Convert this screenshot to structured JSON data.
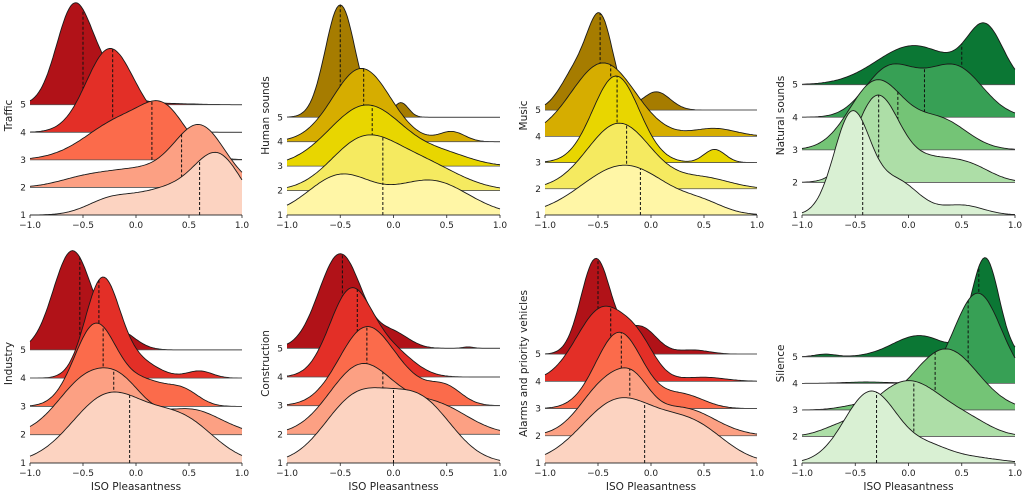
{
  "chart_data": [
    {
      "type": "ridgeline",
      "ylabel": "Traffic",
      "xlabel": "",
      "xlim": [
        -1,
        1
      ],
      "ylim": [
        1,
        8.8
      ],
      "xticks": [
        "−1.0",
        "−0.5",
        "0.0",
        "0.5",
        "1.0"
      ],
      "yticks": [
        "1",
        "2",
        "3",
        "4",
        "5"
      ],
      "palette": [
        "#fcd3c1",
        "#fca083",
        "#fb6b4b",
        "#e32f27",
        "#b11218"
      ],
      "ridges": [
        {
          "level": 1,
          "median": 0.6,
          "density": [
            [
              0.78,
              0.22,
              2.0
            ],
            [
              0.3,
              0.3,
              0.9
            ],
            [
              -0.25,
              0.22,
              0.5
            ]
          ]
        },
        {
          "level": 2,
          "median": 0.43,
          "density": [
            [
              0.6,
              0.24,
              2.2
            ],
            [
              0.0,
              0.3,
              0.6
            ],
            [
              -0.5,
              0.25,
              0.3
            ]
          ]
        },
        {
          "level": 3,
          "median": 0.15,
          "density": [
            [
              -0.1,
              0.35,
              1.5
            ],
            [
              0.28,
              0.2,
              1.2
            ]
          ]
        },
        {
          "level": 4,
          "median": -0.22,
          "density": [
            [
              -0.25,
              0.22,
              3.0
            ],
            [
              0.15,
              0.2,
              0.3
            ]
          ]
        },
        {
          "level": 5,
          "median": -0.5,
          "density": [
            [
              -0.6,
              0.16,
              3.1
            ],
            [
              -0.35,
              0.2,
              1.2
            ],
            [
              0.2,
              0.3,
              0.05
            ]
          ]
        }
      ]
    },
    {
      "type": "ridgeline",
      "ylabel": "Human sounds",
      "xlabel": "",
      "xlim": [
        -1,
        1
      ],
      "ylim": [
        1,
        9.8
      ],
      "xticks": [
        "−1.0",
        "−0.5",
        "0.0",
        "0.5",
        "1.0"
      ],
      "yticks": [
        "1",
        "2",
        "3",
        "4",
        "5"
      ],
      "palette": [
        "#fff6a6",
        "#f5ea60",
        "#e8d600",
        "#d6ad00",
        "#a67c00"
      ],
      "ridges": [
        {
          "level": 1,
          "median": -0.1,
          "density": [
            [
              -0.5,
              0.3,
              1.6
            ],
            [
              0.35,
              0.35,
              1.4
            ]
          ]
        },
        {
          "level": 2,
          "median": -0.1,
          "density": [
            [
              -0.3,
              0.3,
              1.9
            ],
            [
              0.25,
              0.35,
              1.1
            ]
          ]
        },
        {
          "level": 3,
          "median": -0.2,
          "density": [
            [
              -0.25,
              0.35,
              2.5
            ],
            [
              0.5,
              0.25,
              0.4
            ]
          ]
        },
        {
          "level": 4,
          "median": -0.28,
          "density": [
            [
              -0.3,
              0.27,
              3.0
            ],
            [
              0.55,
              0.12,
              0.4
            ]
          ]
        },
        {
          "level": 5,
          "median": -0.5,
          "density": [
            [
              -0.5,
              0.14,
              4.6
            ],
            [
              0.07,
              0.07,
              0.6
            ]
          ]
        }
      ]
    },
    {
      "type": "ridgeline",
      "ylabel": "Music",
      "xlabel": "",
      "xlim": [
        -1,
        1
      ],
      "ylim": [
        1,
        9.2
      ],
      "xticks": [
        "−1.0",
        "−0.5",
        "0.0",
        "0.5",
        "1.0"
      ],
      "yticks": [
        "1",
        "2",
        "3",
        "4",
        "5"
      ],
      "palette": [
        "#fff6a6",
        "#f5ea60",
        "#e8d600",
        "#d6ad00",
        "#a67c00"
      ],
      "ridges": [
        {
          "level": 1,
          "median": -0.1,
          "density": [
            [
              -0.25,
              0.4,
              1.9
            ],
            [
              0.5,
              0.2,
              0.3
            ]
          ]
        },
        {
          "level": 2,
          "median": -0.23,
          "density": [
            [
              -0.3,
              0.3,
              2.5
            ],
            [
              0.5,
              0.25,
              0.4
            ]
          ]
        },
        {
          "level": 3,
          "median": -0.32,
          "density": [
            [
              -0.33,
              0.22,
              3.3
            ],
            [
              0.6,
              0.1,
              0.5
            ]
          ]
        },
        {
          "level": 4,
          "median": -0.38,
          "density": [
            [
              -0.45,
              0.3,
              2.8
            ],
            [
              0.6,
              0.2,
              0.3
            ]
          ]
        },
        {
          "level": 5,
          "median": -0.48,
          "density": [
            [
              -0.47,
              0.12,
              3.2
            ],
            [
              -0.7,
              0.15,
              1.5
            ],
            [
              0.05,
              0.13,
              0.7
            ]
          ]
        }
      ]
    },
    {
      "type": "ridgeline",
      "ylabel": "Natural sounds",
      "xlabel": "",
      "xlim": [
        -1,
        1
      ],
      "ylim": [
        1,
        7.6
      ],
      "xticks": [
        "−1.0",
        "−0.5",
        "0.0",
        "0.5",
        "1.0"
      ],
      "yticks": [
        "1",
        "2",
        "3",
        "4",
        "5"
      ],
      "palette": [
        "#d9f0d3",
        "#addea7",
        "#74c476",
        "#37a055",
        "#0b7734"
      ],
      "ridges": [
        {
          "level": 1,
          "median": -0.43,
          "density": [
            [
              -0.53,
              0.17,
              3.1
            ],
            [
              -0.1,
              0.2,
              1.0
            ],
            [
              0.5,
              0.2,
              0.3
            ]
          ]
        },
        {
          "level": 2,
          "median": -0.28,
          "density": [
            [
              -0.3,
              0.2,
              2.5
            ],
            [
              0.2,
              0.3,
              0.7
            ],
            [
              0.6,
              0.2,
              0.3
            ]
          ]
        },
        {
          "level": 3,
          "median": -0.1,
          "density": [
            [
              -0.3,
              0.25,
              2.1
            ],
            [
              0.3,
              0.25,
              0.9
            ]
          ]
        },
        {
          "level": 4,
          "median": 0.15,
          "density": [
            [
              -0.2,
              0.22,
              1.4
            ],
            [
              0.45,
              0.25,
              1.5
            ],
            [
              0.1,
              0.2,
              0.4
            ]
          ]
        },
        {
          "level": 5,
          "median": 0.5,
          "density": [
            [
              0.72,
              0.17,
              1.7
            ],
            [
              0.05,
              0.35,
              1.2
            ]
          ]
        }
      ]
    },
    {
      "type": "ridgeline",
      "ylabel": "Industry",
      "xlabel": "ISO Pleasantness",
      "xlim": [
        -1,
        1
      ],
      "ylim": [
        1,
        8.6
      ],
      "xticks": [
        "−1.0",
        "−0.5",
        "0.0",
        "0.5",
        "1.0"
      ],
      "yticks": [
        "1",
        "2",
        "3",
        "4",
        "5"
      ],
      "palette": [
        "#fcd3c1",
        "#fca083",
        "#fb6b4b",
        "#e32f27",
        "#b11218"
      ],
      "ridges": [
        {
          "level": 1,
          "median": -0.06,
          "density": [
            [
              -0.25,
              0.35,
              2.4
            ],
            [
              0.45,
              0.3,
              1.4
            ]
          ]
        },
        {
          "level": 2,
          "median": -0.21,
          "density": [
            [
              -0.45,
              0.28,
              2.0
            ],
            [
              -0.1,
              0.2,
              1.0
            ],
            [
              0.5,
              0.3,
              0.9
            ]
          ]
        },
        {
          "level": 3,
          "median": -0.31,
          "density": [
            [
              -0.38,
              0.2,
              2.9
            ],
            [
              0.1,
              0.2,
              0.8
            ],
            [
              0.45,
              0.15,
              0.5
            ]
          ]
        },
        {
          "level": 4,
          "median": -0.35,
          "density": [
            [
              -0.32,
              0.16,
              3.4
            ],
            [
              0.0,
              0.2,
              0.6
            ],
            [
              0.6,
              0.12,
              0.25
            ]
          ]
        },
        {
          "level": 5,
          "median": -0.53,
          "density": [
            [
              -0.6,
              0.18,
              3.5
            ],
            [
              -0.15,
              0.15,
              0.6
            ]
          ]
        }
      ]
    },
    {
      "type": "ridgeline",
      "ylabel": "Construction",
      "xlabel": "ISO Pleasantness",
      "xlim": [
        -1,
        1
      ],
      "ylim": [
        1,
        8.5
      ],
      "xticks": [
        "−1.0",
        "−0.5",
        "0.0",
        "0.5",
        "1.0"
      ],
      "yticks": [
        "1",
        "2",
        "3",
        "4",
        "5"
      ],
      "palette": [
        "#fcd3c1",
        "#fca083",
        "#fb6b4b",
        "#e32f27",
        "#b11218"
      ],
      "ridges": [
        {
          "level": 1,
          "median": 0.0,
          "density": [
            [
              -0.35,
              0.3,
              2.2
            ],
            [
              0.25,
              0.3,
              2.1
            ]
          ]
        },
        {
          "level": 2,
          "median": -0.1,
          "density": [
            [
              -0.3,
              0.3,
              2.4
            ],
            [
              0.4,
              0.3,
              1.0
            ]
          ]
        },
        {
          "level": 3,
          "median": -0.25,
          "density": [
            [
              -0.27,
              0.25,
              2.6
            ],
            [
              0.5,
              0.15,
              0.5
            ],
            [
              0.15,
              0.25,
              0.6
            ]
          ]
        },
        {
          "level": 4,
          "median": -0.34,
          "density": [
            [
              -0.4,
              0.2,
              3.0
            ],
            [
              0.0,
              0.2,
              0.8
            ]
          ]
        },
        {
          "level": 5,
          "median": -0.48,
          "density": [
            [
              -0.5,
              0.2,
              3.3
            ],
            [
              0.0,
              0.15,
              0.5
            ],
            [
              0.7,
              0.05,
              0.05
            ]
          ]
        }
      ]
    },
    {
      "type": "ridgeline",
      "ylabel": "Alarms and priority vehicles",
      "xlabel": "ISO Pleasantness",
      "xlim": [
        -1,
        1
      ],
      "ylim": [
        1,
        8.9
      ],
      "xticks": [
        "−1.0",
        "−0.5",
        "0.0",
        "0.5",
        "1.0"
      ],
      "yticks": [
        "1",
        "2",
        "3",
        "4",
        "5"
      ],
      "palette": [
        "#fcd3c1",
        "#fca083",
        "#fb6b4b",
        "#e32f27",
        "#b11218"
      ],
      "ridges": [
        {
          "level": 1,
          "median": -0.06,
          "density": [
            [
              -0.3,
              0.35,
              2.3
            ],
            [
              0.4,
              0.3,
              1.3
            ]
          ]
        },
        {
          "level": 2,
          "median": -0.2,
          "density": [
            [
              -0.4,
              0.25,
              2.0
            ],
            [
              -0.15,
              0.15,
              0.8
            ],
            [
              0.3,
              0.3,
              1.0
            ]
          ]
        },
        {
          "level": 3,
          "median": -0.28,
          "density": [
            [
              -0.3,
              0.22,
              2.8
            ],
            [
              0.3,
              0.2,
              0.5
            ]
          ]
        },
        {
          "level": 4,
          "median": -0.38,
          "density": [
            [
              -0.45,
              0.25,
              2.7
            ],
            [
              -0.1,
              0.15,
              0.8
            ],
            [
              0.5,
              0.2,
              0.15
            ]
          ]
        },
        {
          "level": 5,
          "median": -0.5,
          "density": [
            [
              -0.52,
              0.14,
              3.5
            ],
            [
              -0.1,
              0.15,
              1.0
            ],
            [
              0.4,
              0.15,
              0.15
            ]
          ]
        }
      ]
    },
    {
      "type": "ridgeline",
      "ylabel": "Silence",
      "xlabel": "ISO Pleasantness",
      "xlim": [
        -1,
        1
      ],
      "ylim": [
        1,
        9.1
      ],
      "xticks": [
        "−1.0",
        "−0.5",
        "0.0",
        "0.5",
        "1.0"
      ],
      "yticks": [
        "1",
        "2",
        "3",
        "4",
        "5"
      ],
      "palette": [
        "#d9f0d3",
        "#addea7",
        "#74c476",
        "#37a055",
        "#0b7734"
      ],
      "ridges": [
        {
          "level": 1,
          "median": -0.3,
          "density": [
            [
              -0.35,
              0.25,
              2.7
            ],
            [
              0.2,
              0.2,
              0.5
            ],
            [
              0.6,
              0.25,
              0.2
            ]
          ]
        },
        {
          "level": 2,
          "median": 0.05,
          "density": [
            [
              0.0,
              0.35,
              2.1
            ],
            [
              -0.7,
              0.15,
              0.15
            ],
            [
              0.6,
              0.2,
              0.3
            ]
          ]
        },
        {
          "level": 3,
          "median": 0.25,
          "density": [
            [
              0.35,
              0.3,
              2.3
            ],
            [
              -0.4,
              0.2,
              0.2
            ]
          ]
        },
        {
          "level": 4,
          "median": 0.56,
          "density": [
            [
              0.65,
              0.22,
              3.4
            ],
            [
              -0.4,
              0.2,
              0.05
            ]
          ]
        },
        {
          "level": 5,
          "median": 0.66,
          "density": [
            [
              0.72,
              0.13,
              3.7
            ],
            [
              0.1,
              0.25,
              0.8
            ],
            [
              -0.78,
              0.1,
              0.1
            ]
          ]
        }
      ]
    }
  ]
}
